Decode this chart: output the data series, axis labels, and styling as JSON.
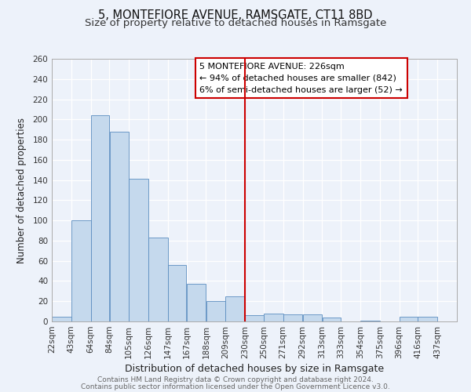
{
  "title": "5, MONTEFIORE AVENUE, RAMSGATE, CT11 8BD",
  "subtitle": "Size of property relative to detached houses in Ramsgate",
  "xlabel": "Distribution of detached houses by size in Ramsgate",
  "ylabel": "Number of detached properties",
  "bar_left_edges": [
    22,
    43,
    64,
    84,
    105,
    126,
    147,
    167,
    188,
    209,
    230,
    250,
    271,
    292,
    313,
    333,
    354,
    375,
    396,
    416
  ],
  "bar_widths": [
    21,
    21,
    20,
    21,
    21,
    21,
    20,
    21,
    21,
    21,
    20,
    21,
    21,
    21,
    20,
    21,
    21,
    21,
    20,
    21
  ],
  "bar_heights": [
    5,
    100,
    204,
    188,
    141,
    83,
    56,
    37,
    20,
    25,
    6,
    8,
    7,
    7,
    4,
    0,
    1,
    0,
    5,
    5
  ],
  "bar_color": "#c5d9ed",
  "bar_edge_color": "#5b8dc0",
  "xticklabels": [
    "22sqm",
    "43sqm",
    "64sqm",
    "84sqm",
    "105sqm",
    "126sqm",
    "147sqm",
    "167sqm",
    "188sqm",
    "209sqm",
    "230sqm",
    "250sqm",
    "271sqm",
    "292sqm",
    "313sqm",
    "333sqm",
    "354sqm",
    "375sqm",
    "396sqm",
    "416sqm",
    "437sqm"
  ],
  "xtick_positions": [
    22,
    43,
    64,
    84,
    105,
    126,
    147,
    167,
    188,
    209,
    230,
    250,
    271,
    292,
    313,
    333,
    354,
    375,
    396,
    416,
    437
  ],
  "ylim": [
    0,
    260
  ],
  "yticks": [
    0,
    20,
    40,
    60,
    80,
    100,
    120,
    140,
    160,
    180,
    200,
    220,
    240,
    260
  ],
  "vline_x": 230,
  "vline_color": "#cc0000",
  "annotation_text": "5 MONTEFIORE AVENUE: 226sqm\n← 94% of detached houses are smaller (842)\n6% of semi-detached houses are larger (52) →",
  "bg_color": "#edf2fa",
  "footer1": "Contains HM Land Registry data © Crown copyright and database right 2024.",
  "footer2": "Contains public sector information licensed under the Open Government Licence v3.0.",
  "title_fontsize": 10.5,
  "subtitle_fontsize": 9.5,
  "xlabel_fontsize": 9,
  "ylabel_fontsize": 8.5,
  "tick_fontsize": 7.5,
  "annotation_fontsize": 8,
  "footer_fontsize": 6.5
}
